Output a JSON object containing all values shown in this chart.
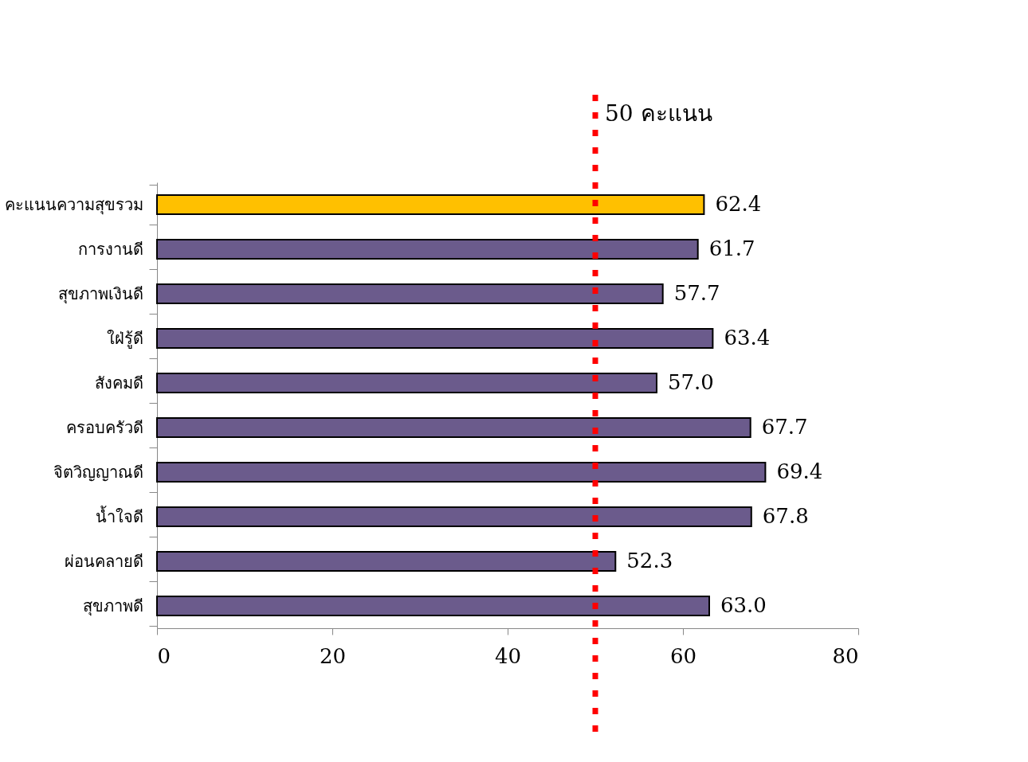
{
  "chart_data": {
    "type": "bar",
    "orientation": "horizontal",
    "categories": [
      "คะแนนความสุขรวม",
      "การงานดี",
      "สุขภาพเงินดี",
      "ใฝ่รู้ดี",
      "สังคมดี",
      "ครอบครัวดี",
      "จิตวิญญาณดี",
      "น้ำใจดี",
      "ผ่อนคลายดี",
      "สุขภาพดี"
    ],
    "values": [
      62.4,
      61.7,
      57.7,
      63.4,
      57.0,
      67.7,
      69.4,
      67.8,
      52.3,
      63.0
    ],
    "colors": [
      "#ffc000",
      "#6b5b8c",
      "#6b5b8c",
      "#6b5b8c",
      "#6b5b8c",
      "#6b5b8c",
      "#6b5b8c",
      "#6b5b8c",
      "#6b5b8c",
      "#6b5b8c"
    ],
    "value_labels": [
      "62.4",
      "61.7",
      "57.7",
      "63.4",
      "57.0",
      "67.7",
      "69.4",
      "67.8",
      "52.3",
      "63.0"
    ],
    "xlim": [
      0,
      80
    ],
    "xticks": [
      0,
      20,
      40,
      60,
      80
    ],
    "ref_lines": [
      {
        "axis": "x",
        "value": 50,
        "label": "50 คะแนน",
        "color": "#ff0000",
        "line_style": "dotted"
      }
    ],
    "grid": false
  }
}
